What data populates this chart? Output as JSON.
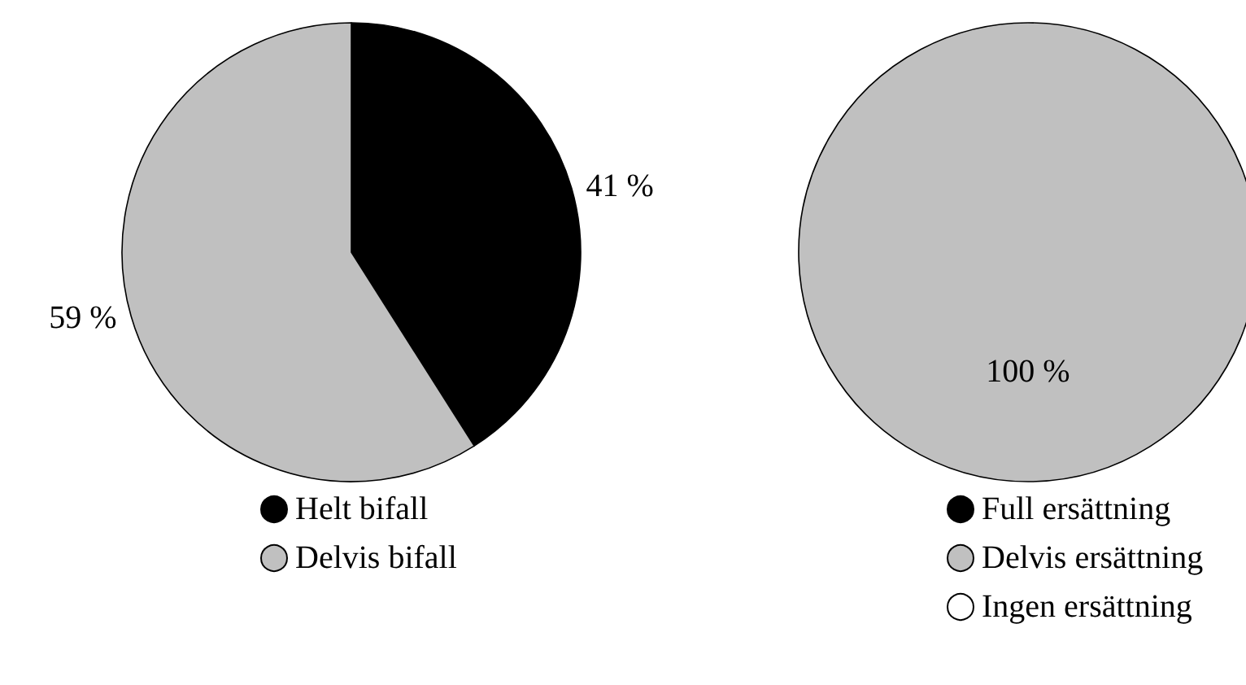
{
  "chart_data": [
    {
      "type": "pie",
      "categories": [
        "Helt bifall",
        "Delvis bifall"
      ],
      "values": [
        41,
        59
      ],
      "colors": [
        "#000000",
        "#c0c0c0"
      ],
      "value_labels": [
        "41 %",
        "59 %"
      ],
      "legend": "bottom"
    },
    {
      "type": "pie",
      "categories": [
        "Full ersättning",
        "Delvis ersättning",
        "Ingen ersättning"
      ],
      "values": [
        0,
        100,
        0
      ],
      "colors": [
        "#000000",
        "#c0c0c0",
        "#ffffff"
      ],
      "value_labels": [
        null,
        "100 %",
        null
      ],
      "legend": "bottom"
    }
  ]
}
